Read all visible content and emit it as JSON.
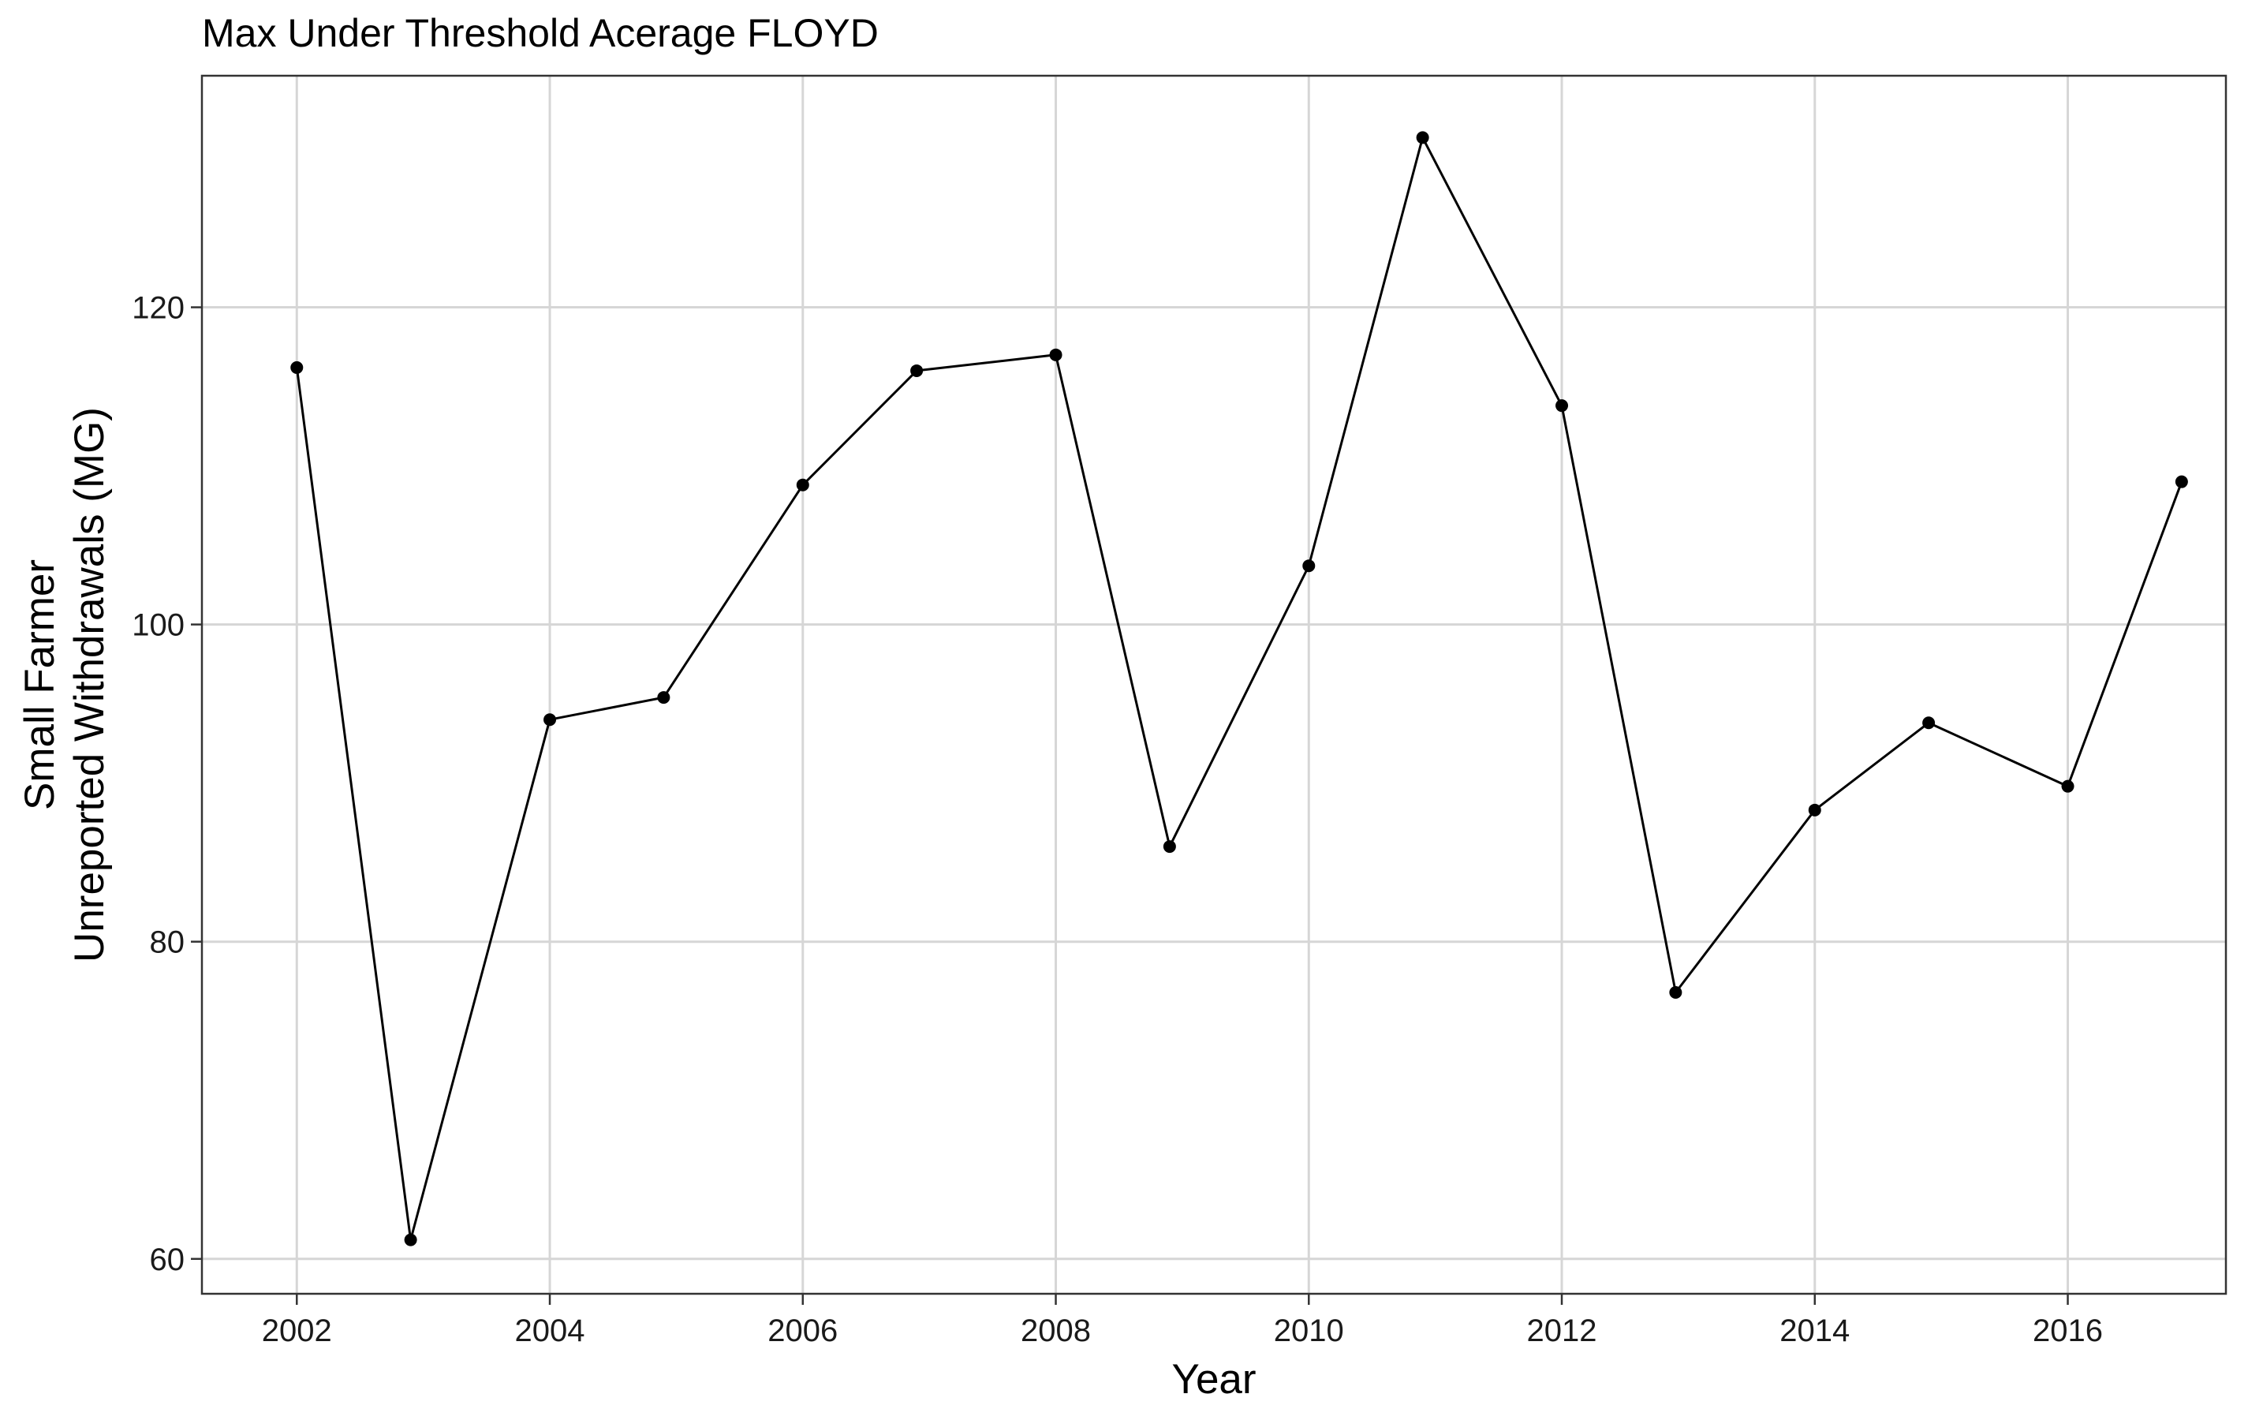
{
  "chart_data": {
    "type": "line",
    "title": "Max Under Threshold Acerage FLOYD",
    "xlabel": "Year",
    "ylabel_lines": [
      "Small Farmer",
      "Unreported Withdrawals (MG)"
    ],
    "x": [
      2002.0,
      2002.9,
      2004.0,
      2004.9,
      2006.0,
      2006.9,
      2008.0,
      2008.9,
      2010.0,
      2010.9,
      2012.0,
      2012.9,
      2014.0,
      2014.9,
      2016.0,
      2016.9
    ],
    "y": [
      116.2,
      61.2,
      94.0,
      95.4,
      108.8,
      116.0,
      117.0,
      86.0,
      103.7,
      130.7,
      113.8,
      76.8,
      88.3,
      93.8,
      89.8,
      109.0
    ],
    "xlim": [
      2001.25,
      2017.25
    ],
    "ylim": [
      57.8,
      134.6
    ],
    "xticks": [
      2002,
      2004,
      2006,
      2008,
      2010,
      2012,
      2014,
      2016
    ],
    "xtick_labels": [
      "2002",
      "2004",
      "2006",
      "2008",
      "2010",
      "2012",
      "2014",
      "2016"
    ],
    "yticks": [
      60,
      80,
      100,
      120
    ],
    "ytick_labels": [
      "60",
      "80",
      "100",
      "120"
    ],
    "grid": true,
    "line_color": "#000000",
    "grid_color": "#d6d6d6"
  }
}
